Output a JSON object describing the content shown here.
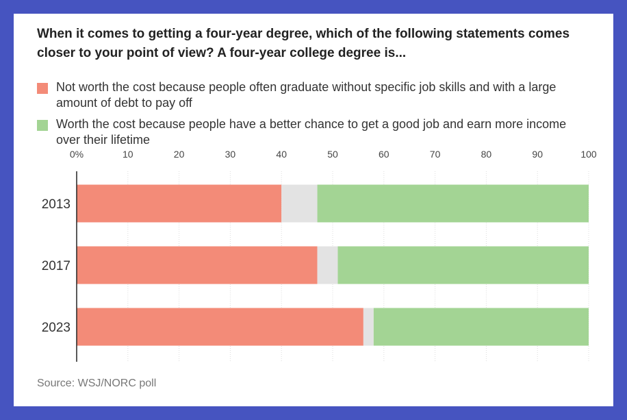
{
  "colors": {
    "not_worth": "#f38b78",
    "other": "#e3e3e3",
    "worth": "#a3d494",
    "background": "#4654c0"
  },
  "chart_data": {
    "type": "bar",
    "orientation": "horizontal",
    "stacked": true,
    "title": "When it comes to getting a four-year degree, which of the following statements comes closer to your point of view? A four-year college degree is...",
    "categories": [
      "2013",
      "2017",
      "2023"
    ],
    "series": [
      {
        "name": "Not worth the cost because people often graduate without specific job skills and with a large amount of debt to pay off",
        "values": [
          40,
          47,
          56
        ],
        "color": "#f38b78"
      },
      {
        "values": [
          7,
          4,
          2
        ],
        "color": "#e3e3e3"
      },
      {
        "name": "Worth the cost because people have a better chance to get a good job and earn more income over their lifetime",
        "values": [
          53,
          49,
          42
        ],
        "color": "#a3d494"
      }
    ],
    "xlim": [
      0,
      100
    ],
    "xticks": [
      0,
      10,
      20,
      30,
      40,
      50,
      60,
      70,
      80,
      90,
      100
    ],
    "xtick_labels": [
      "0%",
      "10",
      "20",
      "30",
      "40",
      "50",
      "60",
      "70",
      "80",
      "90",
      "100"
    ],
    "grid": true,
    "legend_position": "top",
    "source": "Source: WSJ/NORC poll"
  }
}
